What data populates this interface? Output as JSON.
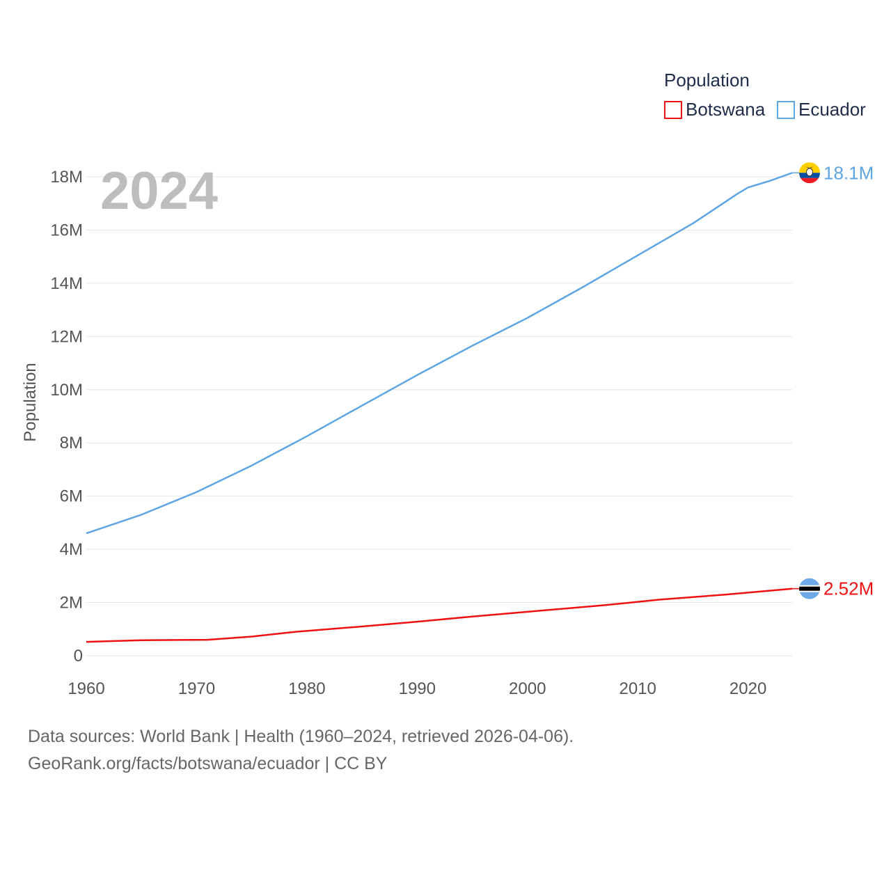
{
  "chart_data": {
    "type": "line",
    "title": "",
    "year_overlay": "2024",
    "xlabel": "",
    "ylabel": "Population",
    "xlim": [
      1960,
      2024
    ],
    "ylim": [
      0,
      18000000
    ],
    "x_ticks": [
      1960,
      1970,
      1980,
      1990,
      2000,
      2010,
      2020
    ],
    "x_tick_labels": [
      "1960",
      "1970",
      "1980",
      "1990",
      "2000",
      "2010",
      "2020"
    ],
    "y_ticks": [
      0,
      2000000,
      4000000,
      6000000,
      8000000,
      10000000,
      12000000,
      14000000,
      16000000,
      18000000
    ],
    "y_tick_labels": [
      "0",
      "2M",
      "4M",
      "6M",
      "8M",
      "10M",
      "12M",
      "14M",
      "16M",
      "18M"
    ],
    "grid": true,
    "legend": {
      "title": "Population",
      "position": "top-right",
      "items": [
        {
          "name": "Botswana",
          "color": "#ee1111"
        },
        {
          "name": "Ecuador",
          "color": "#5da5e4"
        }
      ]
    },
    "series": [
      {
        "name": "Botswana",
        "color": "#ee1111",
        "end_label": "2.52M",
        "flag_icon": "botswana-flag-icon",
        "x": [
          1960,
          1965,
          1971,
          1975,
          1979,
          1985,
          1990,
          1995,
          2000,
          2007,
          2012,
          2018,
          2024
        ],
        "values": [
          520000,
          580000,
          600000,
          720000,
          900000,
          1100000,
          1280000,
          1470000,
          1650000,
          1900000,
          2110000,
          2300000,
          2520000
        ]
      },
      {
        "name": "Ecuador",
        "color": "#5da5e4",
        "end_label": "18.1M",
        "flag_icon": "ecuador-flag-icon",
        "x": [
          1960,
          1965,
          1970,
          1975,
          1980,
          1985,
          1990,
          1995,
          2000,
          2005,
          2010,
          2015,
          2017,
          2019,
          2020,
          2022,
          2024
        ],
        "values": [
          4600000,
          5300000,
          6150000,
          7150000,
          8250000,
          9400000,
          10550000,
          11650000,
          12700000,
          13850000,
          15050000,
          16250000,
          16800000,
          17350000,
          17600000,
          17850000,
          18150000
        ]
      }
    ]
  },
  "footer": {
    "line1": "Data sources: World Bank | Health (1960–2024, retrieved 2026-04-06).",
    "line2": "GeoRank.org/facts/botswana/ecuador | CC BY"
  }
}
